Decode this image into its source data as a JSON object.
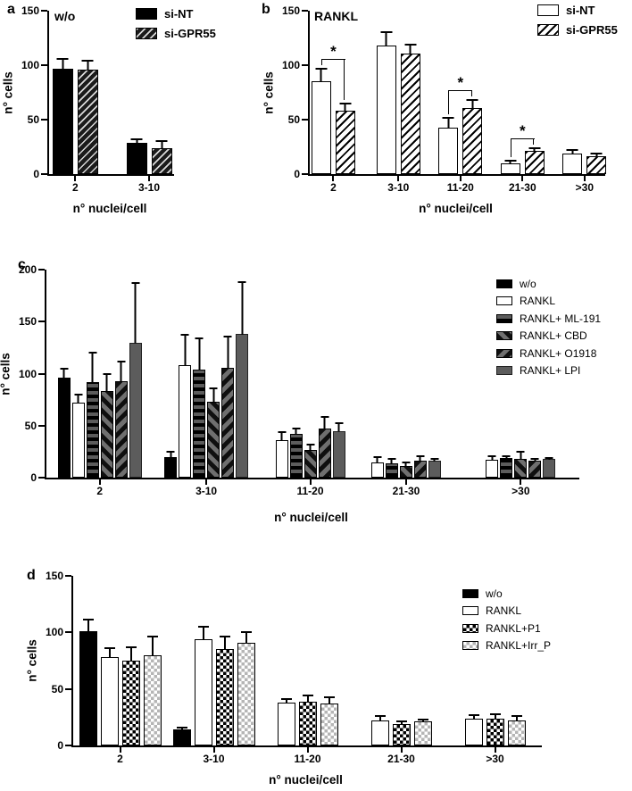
{
  "figure": {
    "background": "#ffffff",
    "ink_color": "#000000",
    "gray_fill": "#5c5c5c",
    "xlabel": "n° nuclei/cell",
    "ylabel": "n° cells"
  },
  "chart_data": [
    {
      "id": "a",
      "type": "bar",
      "panel_label": "a",
      "title": "w/o",
      "xlabel": "n° nuclei/cell",
      "ylabel": "n° cells",
      "ylim": [
        0,
        150
      ],
      "yticks": [
        0,
        50,
        100,
        150
      ],
      "grid": false,
      "legend_position": "top-right-of-plot",
      "categories": [
        "2",
        "3-10"
      ],
      "series": [
        {
          "name": "si-NT",
          "pattern": "solid-black",
          "values": [
            97,
            29
          ],
          "errors": [
            9,
            3
          ]
        },
        {
          "name": "si-GPR55",
          "pattern": "hatch-dark",
          "values": [
            96,
            24
          ],
          "errors": [
            8,
            6
          ]
        }
      ],
      "significance": []
    },
    {
      "id": "b",
      "type": "bar",
      "panel_label": "b",
      "title": "RANKL",
      "xlabel": "n° nuclei/cell",
      "ylabel": "n° cells",
      "ylim": [
        0,
        150
      ],
      "yticks": [
        0,
        50,
        100,
        150
      ],
      "grid": false,
      "legend_position": "top-right",
      "categories": [
        "2",
        "3-10",
        "11-20",
        "21-30",
        ">30"
      ],
      "series": [
        {
          "name": "si-NT",
          "pattern": "open-white",
          "values": [
            85,
            118,
            43,
            10,
            19
          ],
          "errors": [
            12,
            12,
            9,
            2,
            3
          ]
        },
        {
          "name": "si-GPR55",
          "pattern": "hatch-light",
          "values": [
            58,
            111,
            61,
            21,
            16
          ],
          "errors": [
            7,
            8,
            7,
            3,
            3
          ]
        }
      ],
      "significance": [
        {
          "category": "2",
          "between": [
            "si-NT",
            "si-GPR55"
          ],
          "label": "*"
        },
        {
          "category": "11-20",
          "between": [
            "si-NT",
            "si-GPR55"
          ],
          "label": "*"
        },
        {
          "category": "21-30",
          "between": [
            "si-NT",
            "si-GPR55"
          ],
          "label": "*"
        }
      ]
    },
    {
      "id": "c",
      "type": "bar",
      "panel_label": "c",
      "title": "",
      "xlabel": "n° nuclei/cell",
      "ylabel": "n° cells",
      "ylim": [
        0,
        200
      ],
      "yticks": [
        0,
        50,
        100,
        150,
        200
      ],
      "grid": false,
      "legend_position": "right",
      "categories": [
        "2",
        "3-10",
        "11-20",
        "21-30",
        ">30"
      ],
      "series": [
        {
          "name": "w/o",
          "pattern": "solid-black",
          "values": [
            96,
            20,
            null,
            null,
            null
          ],
          "errors": [
            9,
            5,
            null,
            null,
            null
          ]
        },
        {
          "name": "RANKL",
          "pattern": "open-white",
          "values": [
            72,
            108,
            36,
            15,
            17
          ],
          "errors": [
            8,
            29,
            8,
            5,
            4
          ]
        },
        {
          "name": "RANKL+ ML-191",
          "pattern": "hlines-dark",
          "values": [
            92,
            104,
            42,
            14,
            19
          ],
          "errors": [
            28,
            30,
            5,
            4,
            2
          ]
        },
        {
          "name": "RANKL+ CBD",
          "pattern": "diag-down-dark",
          "values": [
            83,
            73,
            27,
            11,
            18
          ],
          "errors": [
            17,
            13,
            5,
            4,
            7
          ]
        },
        {
          "name": "RANKL+ O1918",
          "pattern": "diag-up-dark",
          "values": [
            93,
            106,
            47,
            16,
            16
          ],
          "errors": [
            19,
            30,
            11,
            5,
            2
          ]
        },
        {
          "name": "RANKL+ LPI",
          "pattern": "solid-gray",
          "values": [
            130,
            138,
            45,
            16,
            18
          ],
          "errors": [
            57,
            50,
            7,
            2,
            1
          ]
        }
      ],
      "significance": []
    },
    {
      "id": "d",
      "type": "bar",
      "panel_label": "d",
      "title": "",
      "xlabel": "n° nuclei/cell",
      "ylabel": "n° cells",
      "ylim": [
        0,
        150
      ],
      "yticks": [
        0,
        50,
        100,
        150
      ],
      "grid": false,
      "legend_position": "right",
      "categories": [
        "2",
        "3-10",
        "11-20",
        "21-30",
        ">30"
      ],
      "series": [
        {
          "name": "w/o",
          "pattern": "solid-black",
          "values": [
            101,
            14,
            null,
            null,
            null
          ],
          "errors": [
            10,
            2,
            null,
            null,
            null
          ]
        },
        {
          "name": "RANKL",
          "pattern": "open-white",
          "values": [
            78,
            94,
            38,
            22,
            24
          ],
          "errors": [
            8,
            11,
            3,
            4,
            3
          ]
        },
        {
          "name": "RANKL+P1",
          "pattern": "checker-dark",
          "values": [
            75,
            85,
            39,
            19,
            24
          ],
          "errors": [
            12,
            11,
            5,
            2,
            4
          ]
        },
        {
          "name": "RANKL+Irr_P",
          "pattern": "checker-light",
          "values": [
            80,
            91,
            37,
            21,
            22
          ],
          "errors": [
            16,
            9,
            6,
            2,
            4
          ]
        }
      ],
      "significance": []
    }
  ]
}
